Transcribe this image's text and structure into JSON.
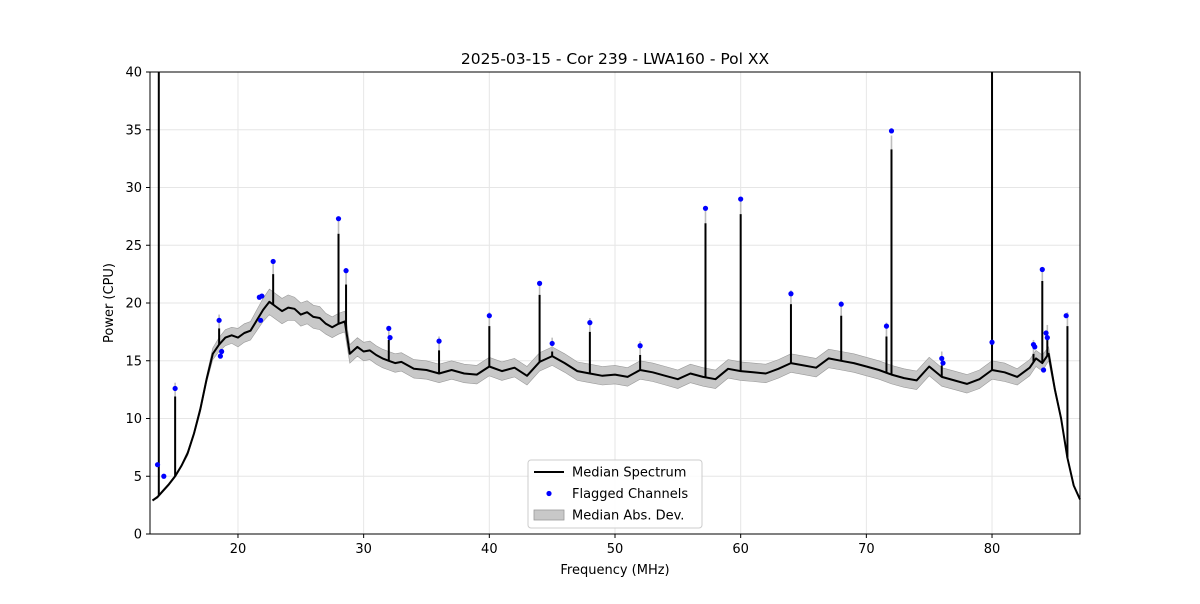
{
  "chart_data": {
    "type": "line",
    "title": "2025-03-15 - Cor 239 - LWA160 - Pol XX",
    "xlabel": "Frequency (MHz)",
    "ylabel": "Power (CPU)",
    "xlim": [
      13.0,
      87.0
    ],
    "ylim": [
      0,
      40
    ],
    "xticks": [
      20,
      30,
      40,
      50,
      60,
      70,
      80
    ],
    "xtick_labels": [
      "20",
      "30",
      "40",
      "50",
      "60",
      "70",
      "80"
    ],
    "yticks": [
      0,
      5,
      10,
      15,
      20,
      25,
      30,
      35,
      40
    ],
    "ytick_labels": [
      "0",
      "5",
      "10",
      "15",
      "20",
      "25",
      "30",
      "35",
      "40"
    ],
    "grid": true,
    "legend_position": "bottom-center",
    "series": [
      {
        "name": "Median Spectrum",
        "style": "line",
        "color": "#000000",
        "x": [
          13.2,
          13.6,
          14.0,
          14.5,
          15.0,
          15.5,
          16.0,
          16.5,
          17.0,
          17.5,
          18.0,
          18.5,
          19.0,
          19.5,
          20.0,
          20.5,
          21.0,
          21.5,
          22.0,
          22.5,
          23.0,
          23.5,
          24.0,
          24.5,
          25.0,
          25.5,
          26.0,
          26.5,
          27.0,
          27.5,
          28.0,
          28.5,
          28.9,
          29.5,
          30.0,
          30.5,
          31.0,
          31.5,
          32.0,
          32.5,
          33.0,
          34.0,
          35.0,
          36.0,
          37.0,
          38.0,
          39.0,
          40.0,
          41.0,
          42.0,
          43.0,
          44.0,
          45.0,
          46.0,
          47.0,
          48.0,
          49.0,
          50.0,
          51.0,
          52.0,
          53.0,
          54.0,
          55.0,
          56.0,
          57.0,
          58.0,
          59.0,
          60.0,
          61.0,
          62.0,
          63.0,
          64.0,
          65.0,
          66.0,
          67.0,
          68.0,
          69.0,
          70.0,
          71.0,
          72.0,
          73.0,
          74.0,
          75.0,
          76.0,
          77.0,
          78.0,
          79.0,
          80.0,
          81.0,
          82.0,
          83.0,
          83.5,
          84.0,
          84.5,
          85.0,
          85.5,
          86.0,
          86.5,
          87.0
        ],
        "values": [
          2.9,
          3.2,
          3.7,
          4.3,
          5.0,
          5.9,
          7.0,
          8.7,
          10.8,
          13.4,
          15.6,
          16.4,
          17.0,
          17.2,
          17.0,
          17.4,
          17.6,
          18.5,
          19.4,
          20.1,
          19.7,
          19.3,
          19.6,
          19.5,
          19.0,
          19.2,
          18.8,
          18.7,
          18.2,
          17.9,
          18.2,
          18.4,
          15.6,
          16.2,
          15.8,
          15.9,
          15.5,
          15.2,
          15.0,
          14.8,
          14.9,
          14.3,
          14.2,
          13.9,
          14.2,
          13.9,
          13.8,
          14.5,
          14.1,
          14.4,
          13.7,
          14.9,
          15.4,
          14.8,
          14.1,
          13.9,
          13.7,
          13.8,
          13.6,
          14.2,
          14.0,
          13.7,
          13.4,
          13.9,
          13.6,
          13.4,
          14.3,
          14.1,
          14.0,
          13.9,
          14.3,
          14.8,
          14.6,
          14.4,
          15.2,
          15.0,
          14.8,
          14.5,
          14.2,
          13.8,
          13.5,
          13.3,
          14.5,
          13.6,
          13.3,
          13.0,
          13.4,
          14.2,
          14.0,
          13.6,
          14.4,
          15.2,
          14.8,
          15.6,
          12.5,
          10.0,
          6.6,
          4.2,
          3.0
        ],
        "spikes": [
          {
            "x": 13.7,
            "peak": 40.0
          },
          {
            "x": 15.0,
            "peak": 11.9
          },
          {
            "x": 18.5,
            "peak": 17.8
          },
          {
            "x": 22.8,
            "peak": 22.5
          },
          {
            "x": 28.0,
            "peak": 26.0
          },
          {
            "x": 28.6,
            "peak": 21.6
          },
          {
            "x": 32.0,
            "peak": 16.8
          },
          {
            "x": 36.0,
            "peak": 15.9
          },
          {
            "x": 40.0,
            "peak": 18.0
          },
          {
            "x": 44.0,
            "peak": 20.7
          },
          {
            "x": 45.0,
            "peak": 15.8
          },
          {
            "x": 48.0,
            "peak": 17.5
          },
          {
            "x": 52.0,
            "peak": 15.5
          },
          {
            "x": 57.2,
            "peak": 26.9
          },
          {
            "x": 60.0,
            "peak": 27.7
          },
          {
            "x": 64.0,
            "peak": 19.9
          },
          {
            "x": 68.0,
            "peak": 18.9
          },
          {
            "x": 71.6,
            "peak": 17.1
          },
          {
            "x": 72.0,
            "peak": 33.3
          },
          {
            "x": 76.0,
            "peak": 14.6
          },
          {
            "x": 80.0,
            "peak": 40.0
          },
          {
            "x": 83.3,
            "peak": 15.6
          },
          {
            "x": 84.0,
            "peak": 21.9
          },
          {
            "x": 84.4,
            "peak": 16.9
          },
          {
            "x": 86.0,
            "peak": 18.0
          }
        ]
      },
      {
        "name": "Flagged Channels",
        "style": "points",
        "color": "#0000ff",
        "x": [
          13.6,
          14.1,
          15.0,
          18.5,
          18.6,
          18.7,
          21.7,
          21.9,
          21.8,
          22.8,
          28.0,
          28.6,
          32.0,
          32.1,
          36.0,
          40.0,
          44.0,
          45.0,
          48.0,
          52.0,
          57.2,
          60.0,
          64.0,
          68.0,
          71.6,
          72.0,
          76.0,
          76.1,
          80.0,
          83.3,
          83.4,
          84.0,
          84.1,
          84.3,
          84.4,
          85.9
        ],
        "values": [
          6.0,
          5.0,
          12.6,
          18.5,
          15.4,
          15.8,
          20.5,
          20.6,
          18.5,
          23.6,
          27.3,
          22.8,
          17.8,
          17.0,
          16.7,
          18.9,
          21.7,
          16.5,
          18.3,
          16.3,
          28.2,
          29.0,
          20.8,
          19.9,
          18.0,
          34.9,
          15.2,
          14.8,
          16.6,
          16.4,
          16.2,
          22.9,
          14.2,
          17.4,
          17.0,
          18.9
        ]
      },
      {
        "name": "Median Abs. Dev.",
        "style": "band",
        "color": "#c8c8c8",
        "mad": [
          0.0,
          0.1,
          0.1,
          0.1,
          0.1,
          0.1,
          0.2,
          0.2,
          0.3,
          0.3,
          0.5,
          0.6,
          0.7,
          0.7,
          0.8,
          0.8,
          0.8,
          0.9,
          1.0,
          1.1,
          1.1,
          1.1,
          1.1,
          1.0,
          1.0,
          1.0,
          1.0,
          1.0,
          0.9,
          0.9,
          0.9,
          0.9,
          0.8,
          0.8,
          0.8,
          0.8,
          0.8,
          0.8,
          0.8,
          0.8,
          0.8,
          0.8,
          0.8,
          0.8,
          0.8,
          0.8,
          0.8,
          0.8,
          0.8,
          0.8,
          0.8,
          0.8,
          0.8,
          0.8,
          0.8,
          0.8,
          0.8,
          0.8,
          0.8,
          0.8,
          0.8,
          0.8,
          0.8,
          0.8,
          0.8,
          0.8,
          0.8,
          0.8,
          0.8,
          0.8,
          0.8,
          0.8,
          0.8,
          0.8,
          0.8,
          0.8,
          0.8,
          0.8,
          0.8,
          0.8,
          0.8,
          0.8,
          0.8,
          0.8,
          0.8,
          0.8,
          0.8,
          0.8,
          0.8,
          0.7,
          0.7,
          0.7,
          0.7,
          0.6,
          0.3,
          0.2,
          0.1,
          0.1,
          0.0
        ]
      }
    ],
    "legend": [
      {
        "label": "Median Spectrum",
        "marker": "line",
        "color": "#000000"
      },
      {
        "label": "Flagged Channels",
        "marker": "dot",
        "color": "#0000ff"
      },
      {
        "label": "Median Abs. Dev.",
        "marker": "patch",
        "color": "#c8c8c8"
      }
    ]
  }
}
